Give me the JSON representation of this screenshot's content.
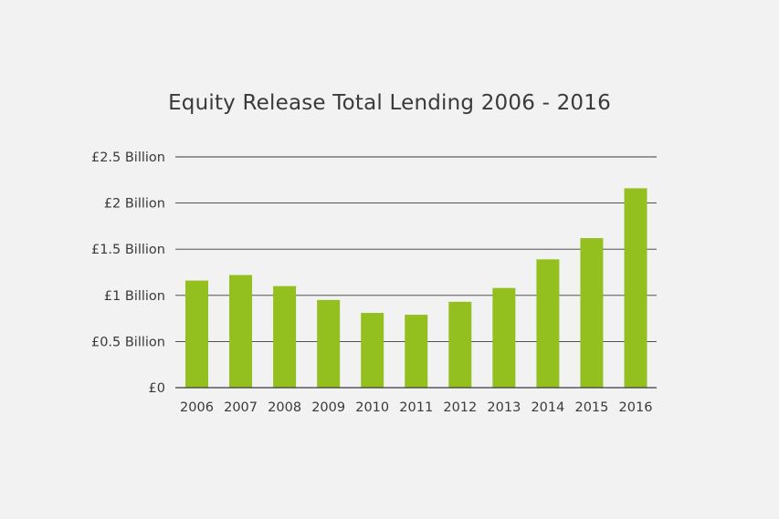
{
  "chart_data": {
    "type": "bar",
    "title": "Equity Release Total Lending 2006 - 2016",
    "xlabel": "",
    "ylabel": "",
    "categories": [
      "2006",
      "2007",
      "2008",
      "2009",
      "2010",
      "2011",
      "2012",
      "2013",
      "2014",
      "2015",
      "2016"
    ],
    "values": [
      1.16,
      1.22,
      1.1,
      0.95,
      0.81,
      0.79,
      0.93,
      1.08,
      1.39,
      1.62,
      2.16
    ],
    "unit": "billion GBP",
    "ylim": [
      0,
      2.5
    ],
    "yticks": [
      {
        "value": 0,
        "label": "£0"
      },
      {
        "value": 0.5,
        "label": "£0.5 Billion"
      },
      {
        "value": 1,
        "label": "£1 Billion"
      },
      {
        "value": 1.5,
        "label": "£1.5 Billion"
      },
      {
        "value": 2,
        "label": "£2 Billion"
      },
      {
        "value": 2.5,
        "label": "£2.5 Billion"
      }
    ],
    "grid": true,
    "legend": "none",
    "colors": {
      "bar": "#93c01f",
      "grid": "#3a3a3a",
      "background": "#f2f2f2",
      "text": "#3a3a3a"
    }
  }
}
